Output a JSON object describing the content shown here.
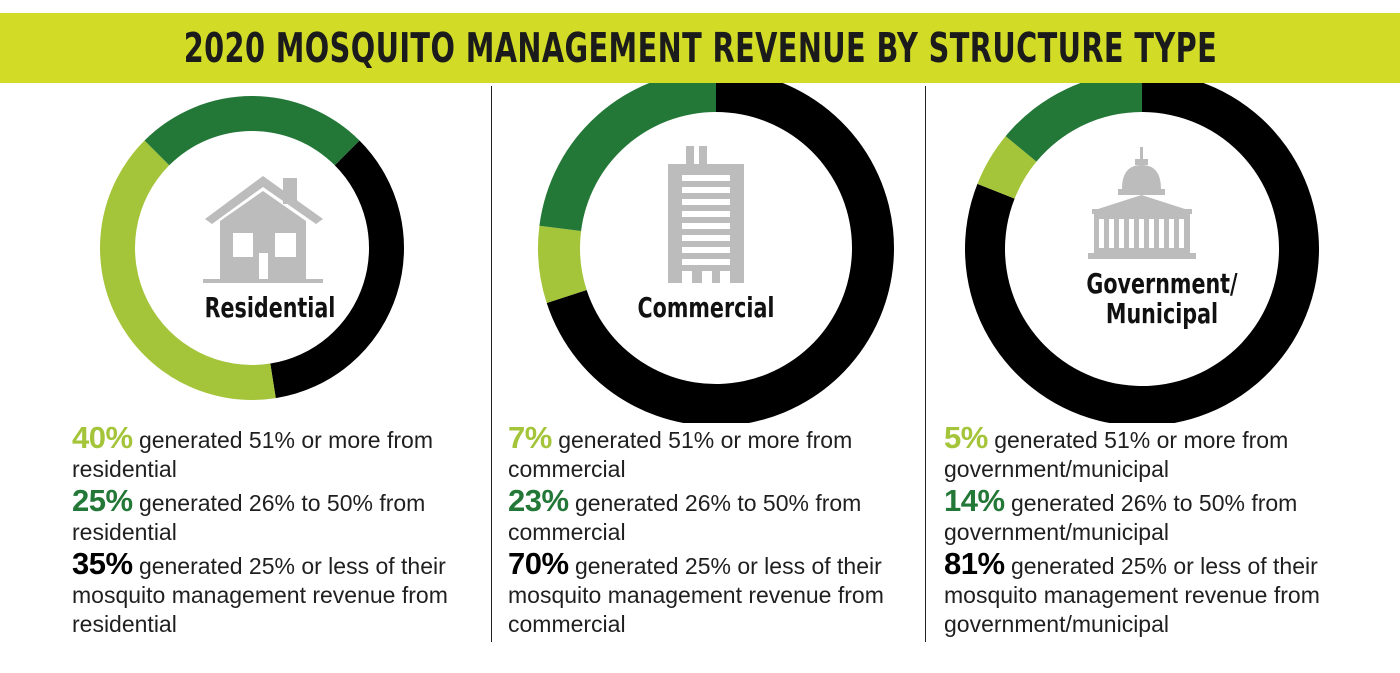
{
  "title": "2020 MOSQUITO MANAGEMENT REVENUE BY STRUCTURE TYPE",
  "colors": {
    "banner": "#d2dc27",
    "light_green": "#a4c43a",
    "dark_green": "#237838",
    "black": "#000000",
    "icon_gray": "#bcbcbc"
  },
  "chart_data": [
    {
      "type": "pie",
      "title": "Residential",
      "icon": "house-icon",
      "slices": [
        {
          "label": "generated 51% or more from residential",
          "value": 40,
          "color": "#a4c43a"
        },
        {
          "label": "generated 26% to 50% from residential",
          "value": 25,
          "color": "#237838"
        },
        {
          "label": "generated 25% or less of their mosquito management revenue from residential",
          "value": 35,
          "color": "#000000"
        }
      ],
      "stats": [
        {
          "value": "40%",
          "text": "generated 51% or more from residential"
        },
        {
          "value": "25%",
          "text": "generated 26% to 50% from residential"
        },
        {
          "value": "35%",
          "text": "generated 25% or less of their mosquito management revenue from residential"
        }
      ]
    },
    {
      "type": "pie",
      "title": "Commercial",
      "icon": "office-building-icon",
      "slices": [
        {
          "label": "generated 51% or more from commercial",
          "value": 7,
          "color": "#a4c43a"
        },
        {
          "label": "generated 26% to 50% from commercial",
          "value": 23,
          "color": "#237838"
        },
        {
          "label": "generated 25% or less of their mosquito management revenue from commercial",
          "value": 70,
          "color": "#000000"
        }
      ],
      "stats": [
        {
          "value": "7%",
          "text": "generated 51% or more from commercial"
        },
        {
          "value": "23%",
          "text": "generated 26% to 50% from commercial"
        },
        {
          "value": "70%",
          "text": "generated 25% or less of their mosquito management revenue from commercial"
        }
      ]
    },
    {
      "type": "pie",
      "title": "Government/\nMunicipal",
      "icon": "capitol-building-icon",
      "slices": [
        {
          "label": "generated 51% or more from government/municipal",
          "value": 5,
          "color": "#a4c43a"
        },
        {
          "label": "generated 26% to 50% from government/municipal",
          "value": 14,
          "color": "#237838"
        },
        {
          "label": "generated 25% or less of their mosquito management revenue from government/municipal",
          "value": 81,
          "color": "#000000"
        }
      ],
      "stats": [
        {
          "value": "5%",
          "text": "generated 51% or more from government/municipal"
        },
        {
          "value": "14%",
          "text": "generated 26% to 50% from government/municipal"
        },
        {
          "value": "81%",
          "text": "generated 25% or less of their mosquito management revenue from government/municipal"
        }
      ]
    }
  ]
}
